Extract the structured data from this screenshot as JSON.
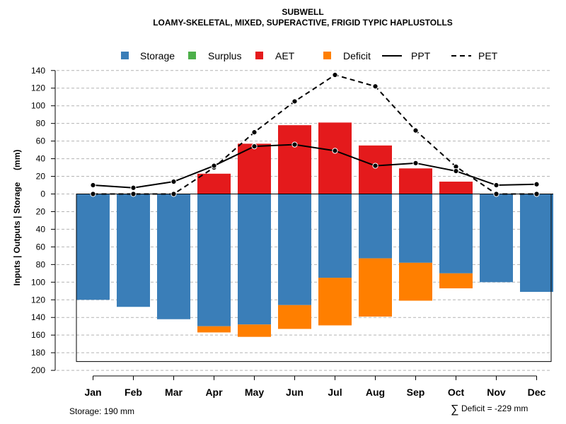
{
  "chart_data": {
    "type": "bar",
    "title": "SUBWELL",
    "subtitle": "LOAMY-SKELETAL, MIXED, SUPERACTIVE, FRIGID TYPIC HAPLUSTOLLS",
    "ylabel": "Inputs | Outputs | Storage     (mm)",
    "xlabel": "",
    "ylim": [
      -200,
      140
    ],
    "y_ticks": [
      140,
      120,
      100,
      80,
      60,
      40,
      20,
      0,
      -20,
      -40,
      -60,
      -80,
      -100,
      -120,
      -140,
      -160,
      -180,
      -200
    ],
    "y_tick_labels": [
      "140",
      "120",
      "100",
      "80",
      "60",
      "40",
      "20",
      "0",
      "20",
      "40",
      "60",
      "80",
      "100",
      "120",
      "140",
      "160",
      "180",
      "200"
    ],
    "categories": [
      "Jan",
      "Feb",
      "Mar",
      "Apr",
      "May",
      "Jun",
      "Jul",
      "Aug",
      "Sep",
      "Oct",
      "Nov",
      "Dec"
    ],
    "grid": true,
    "storage_capacity": 190,
    "legend": [
      "Storage",
      "Surplus",
      "AET",
      "Deficit",
      "PPT",
      "PET"
    ],
    "series": [
      {
        "name": "Storage",
        "kind": "bar-down",
        "values": [
          120,
          128,
          142,
          150,
          148,
          126,
          95,
          73,
          78,
          90,
          100,
          111
        ]
      },
      {
        "name": "Surplus",
        "kind": "bar-down",
        "values": [
          0,
          0,
          0,
          0,
          0,
          0,
          0,
          0,
          0,
          0,
          0,
          0
        ]
      },
      {
        "name": "AET",
        "kind": "bar-up",
        "values": [
          0,
          0,
          0,
          23,
          57,
          78,
          81,
          55,
          29,
          14,
          0,
          0
        ]
      },
      {
        "name": "Deficit",
        "kind": "bar-down-stacked",
        "values": [
          0,
          0,
          0,
          7,
          14,
          27,
          54,
          66,
          43,
          17,
          0,
          0
        ]
      },
      {
        "name": "PPT",
        "kind": "line",
        "values": [
          10,
          7,
          14,
          32,
          54,
          56,
          49,
          32,
          35,
          26,
          10,
          11
        ]
      },
      {
        "name": "PET",
        "kind": "line-dashed",
        "values": [
          0,
          0,
          0,
          30,
          70,
          105,
          135,
          122,
          72,
          31,
          0,
          0
        ]
      }
    ],
    "colors": {
      "Storage": "#3a7eb8",
      "Surplus": "#4daf4a",
      "AET": "#e41a1c",
      "Deficit": "#ff7f00",
      "PPT": "#000000",
      "PET": "#000000",
      "grid": "#b4b4b4"
    }
  },
  "footer": {
    "storage_note": "Storage: 190 mm",
    "deficit_symbol": "∑",
    "deficit_note": "Deficit = -229 mm"
  }
}
